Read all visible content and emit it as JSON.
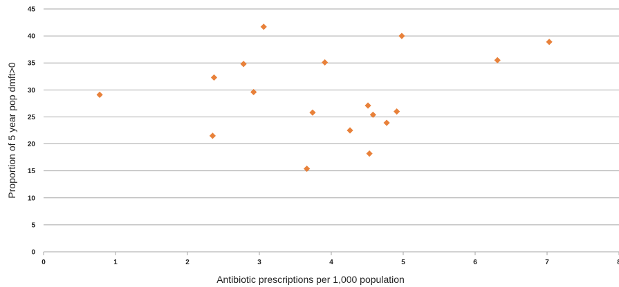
{
  "chart_data": {
    "type": "scatter",
    "title": "",
    "xlabel": "Antibiotic prescriptions per 1,000 population",
    "ylabel": "Proportion of 5 year pop dmft>0",
    "xlim": [
      0,
      8
    ],
    "ylim": [
      0,
      45
    ],
    "x_ticks": [
      "0",
      "1",
      "2",
      "3",
      "4",
      "5",
      "6",
      "7",
      "8"
    ],
    "y_ticks": [
      "0",
      "5",
      "10",
      "15",
      "20",
      "25",
      "30",
      "35",
      "40",
      "45"
    ],
    "grid": "horizontal",
    "marker": "diamond",
    "marker_color": "#e8813a",
    "series": [
      {
        "points": [
          {
            "x": 0.78,
            "y": 29.1
          },
          {
            "x": 2.35,
            "y": 21.5
          },
          {
            "x": 2.37,
            "y": 32.3
          },
          {
            "x": 2.78,
            "y": 34.8
          },
          {
            "x": 2.92,
            "y": 29.6
          },
          {
            "x": 3.06,
            "y": 41.7
          },
          {
            "x": 3.66,
            "y": 15.4
          },
          {
            "x": 3.74,
            "y": 25.8
          },
          {
            "x": 3.91,
            "y": 35.1
          },
          {
            "x": 4.26,
            "y": 22.5
          },
          {
            "x": 4.51,
            "y": 27.1
          },
          {
            "x": 4.53,
            "y": 18.2
          },
          {
            "x": 4.58,
            "y": 25.4
          },
          {
            "x": 4.77,
            "y": 23.9
          },
          {
            "x": 4.91,
            "y": 26.0
          },
          {
            "x": 4.98,
            "y": 40.0
          },
          {
            "x": 6.31,
            "y": 35.5
          },
          {
            "x": 7.03,
            "y": 38.9
          }
        ]
      }
    ]
  }
}
